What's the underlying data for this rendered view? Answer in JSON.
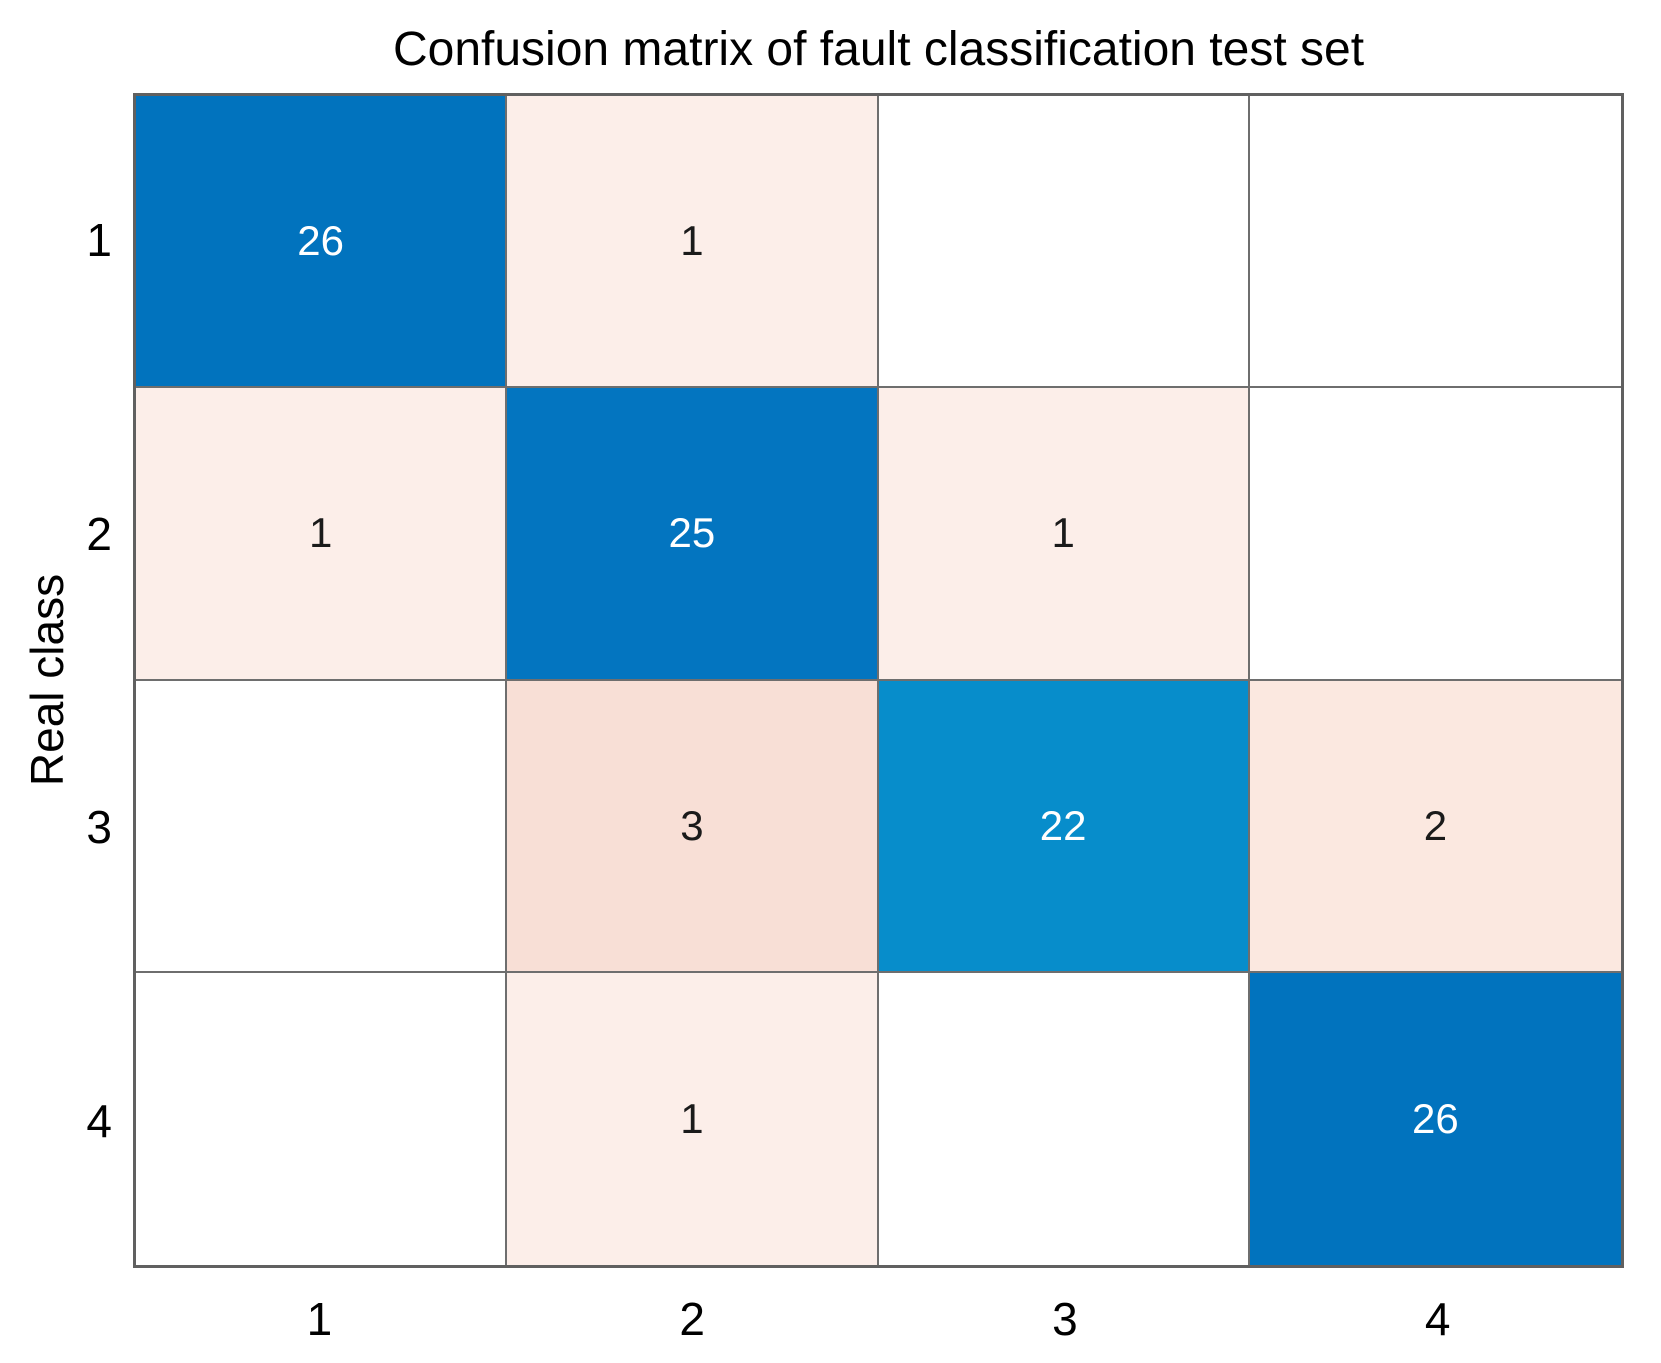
{
  "chart_data": {
    "type": "heatmap",
    "title": "Confusion matrix of fault classification test set",
    "xlabel": "",
    "ylabel": "Real class",
    "x_tick_labels": [
      "1",
      "2",
      "3",
      "4"
    ],
    "y_tick_labels": [
      "1",
      "2",
      "3",
      "4"
    ],
    "matrix": [
      [
        26,
        1,
        0,
        0
      ],
      [
        1,
        25,
        1,
        0
      ],
      [
        0,
        3,
        22,
        2
      ],
      [
        0,
        1,
        0,
        26
      ]
    ],
    "zero_cells_blank": true,
    "legend": "none",
    "colors": {
      "diagonal_base": "#0072BD",
      "offdiagonal_base": "#D95319",
      "by_value": {
        "0": "#FFFFFF",
        "1": "#FCEEE9",
        "2": "#FBE8E0",
        "3": "#F8DFD6",
        "22": "#078DCB",
        "25": "#0375C0",
        "26": "#0173BE"
      },
      "diagonal_text": "#FFFFFF",
      "offdiagonal_text": "#1A1A1A",
      "grid_line": "#6E6E6E"
    }
  }
}
